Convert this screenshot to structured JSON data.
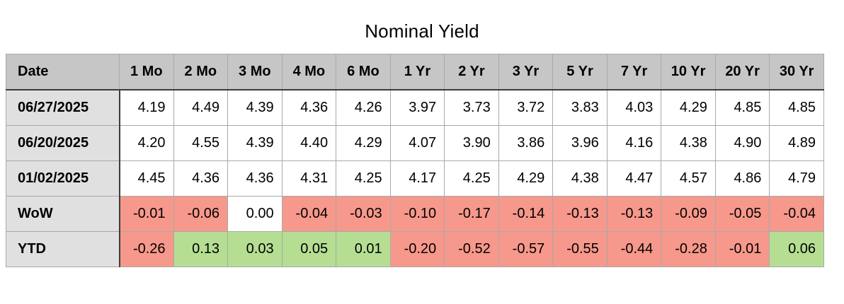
{
  "title": "Nominal Yield",
  "colors": {
    "negative_bg": "#F6988B",
    "positive_bg": "#B5DE93",
    "neutral_bg": "#FFFFFF",
    "header_bg": "#C6C6C6",
    "label_bg": "#E0E0E0"
  },
  "chart_data": {
    "type": "table",
    "title": "Nominal Yield",
    "columns": [
      "Date",
      "1 Mo",
      "2 Mo",
      "3 Mo",
      "4 Mo",
      "6 Mo",
      "1 Yr",
      "2 Yr",
      "3 Yr",
      "5 Yr",
      "7 Yr",
      "10 Yr",
      "20 Yr",
      "30 Yr"
    ],
    "rows": [
      {
        "label": "06/27/2025",
        "colored": false,
        "values": [
          "4.19",
          "4.49",
          "4.39",
          "4.36",
          "4.26",
          "3.97",
          "3.73",
          "3.72",
          "3.83",
          "4.03",
          "4.29",
          "4.85",
          "4.85"
        ]
      },
      {
        "label": "06/20/2025",
        "colored": false,
        "values": [
          "4.20",
          "4.55",
          "4.39",
          "4.40",
          "4.29",
          "4.07",
          "3.90",
          "3.86",
          "3.96",
          "4.16",
          "4.38",
          "4.90",
          "4.89"
        ]
      },
      {
        "label": "01/02/2025",
        "colored": false,
        "values": [
          "4.45",
          "4.36",
          "4.36",
          "4.31",
          "4.25",
          "4.17",
          "4.25",
          "4.29",
          "4.38",
          "4.47",
          "4.57",
          "4.86",
          "4.79"
        ]
      },
      {
        "label": "WoW",
        "colored": true,
        "values": [
          "-0.01",
          "-0.06",
          "0.00",
          "-0.04",
          "-0.03",
          "-0.10",
          "-0.17",
          "-0.14",
          "-0.13",
          "-0.13",
          "-0.09",
          "-0.05",
          "-0.04"
        ]
      },
      {
        "label": "YTD",
        "colored": true,
        "values": [
          "-0.26",
          "0.13",
          "0.03",
          "0.05",
          "0.01",
          "-0.20",
          "-0.52",
          "-0.57",
          "-0.55",
          "-0.44",
          "-0.28",
          "-0.01",
          "0.06"
        ]
      }
    ]
  }
}
